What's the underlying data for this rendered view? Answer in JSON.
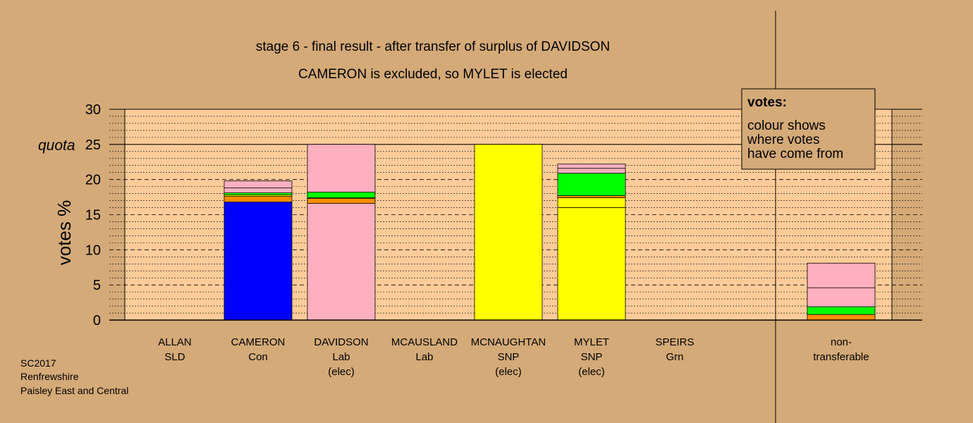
{
  "chart_data": {
    "type": "bar",
    "stacked": true,
    "title": "stage 6 - final result - after transfer of surplus of DAVIDSON",
    "subtitle": "CAMERON is excluded, so MYLET is elected",
    "ylabel": "votes %",
    "ylim": [
      0,
      30
    ],
    "yticks": [
      "0",
      "5",
      "10",
      "15",
      "20",
      "25",
      "30"
    ],
    "quota": {
      "label": "quota",
      "value": 25
    },
    "grid": true,
    "legend": {
      "placement": "top-right",
      "heading": "votes:",
      "lines": [
        "colour shows",
        "where votes",
        "have come from"
      ]
    },
    "colors": {
      "Con": "#0000ff",
      "Lab": "#ffb0c0",
      "SNP": "#ffff00",
      "Grn": "#00ff00",
      "SLD": "#ff8c00",
      "plot_bg": "#ffcc99",
      "page_bg": "#d4aa78"
    },
    "categories": [
      {
        "name": "ALLAN",
        "party": "SLD",
        "status": "",
        "segments": []
      },
      {
        "name": "CAMERON",
        "party": "Con",
        "status": "",
        "segments": [
          {
            "from": "Con",
            "value": 16.8
          },
          {
            "from": "SLD",
            "value": 0.8
          },
          {
            "from": "SNP",
            "value": 0.2
          },
          {
            "from": "Grn",
            "value": 0.3
          },
          {
            "from": "Lab",
            "value": 0.7
          },
          {
            "from": "Lab",
            "value": 1.0
          }
        ]
      },
      {
        "name": "DAVIDSON",
        "party": "Lab",
        "status": "(elec)",
        "segments": [
          {
            "from": "Lab",
            "value": 16.6
          },
          {
            "from": "SLD",
            "value": 0.7
          },
          {
            "from": "SNP",
            "value": 0.1
          },
          {
            "from": "Grn",
            "value": 0.8
          },
          {
            "from": "Lab",
            "value": 6.8
          }
        ]
      },
      {
        "name": "MCAUSLAND",
        "party": "Lab",
        "status": "",
        "segments": []
      },
      {
        "name": "MCNAUGHTAN",
        "party": "SNP",
        "status": "(elec)",
        "segments": [
          {
            "from": "SNP",
            "value": 25.0
          }
        ]
      },
      {
        "name": "MYLET",
        "party": "SNP",
        "status": "(elec)",
        "segments": [
          {
            "from": "SNP",
            "value": 16.0
          },
          {
            "from": "SNP",
            "value": 1.4
          },
          {
            "from": "SLD",
            "value": 0.3
          },
          {
            "from": "Grn",
            "value": 3.2
          },
          {
            "from": "Lab",
            "value": 0.7
          },
          {
            "from": "Lab",
            "value": 0.6
          }
        ]
      },
      {
        "name": "SPEIRS",
        "party": "Grn",
        "status": "",
        "segments": []
      },
      {
        "name": "non-",
        "party": "transferable",
        "status": "",
        "segments": [
          {
            "from": "SLD",
            "value": 0.8
          },
          {
            "from": "Grn",
            "value": 1.1
          },
          {
            "from": "Lab",
            "value": 2.7
          },
          {
            "from": "Lab",
            "value": 3.5
          }
        ]
      }
    ]
  },
  "footer": {
    "line1": "SC2017",
    "line2": "Renfrewshire",
    "line3": "Paisley East and Central"
  }
}
